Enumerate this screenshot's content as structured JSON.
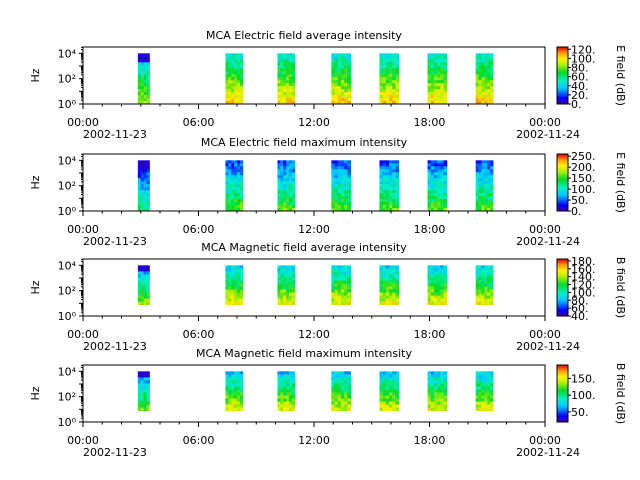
{
  "colors": {
    "background": "#ffffff",
    "empty_plot": "#ffffff",
    "axis": "#000000"
  },
  "chart_data": [
    {
      "type": "heatmap",
      "title": "MCA  Electric field average intensity",
      "ylabel": "Hz",
      "colorbar_label": "E field (dB)",
      "colorbar_ticks": [
        "0.",
        "20.",
        "40.",
        "60.",
        "80.",
        "100.",
        "120."
      ],
      "colorbar_range": [
        0,
        125
      ],
      "x_tick_labels": [
        "00:00",
        "06:00",
        "12:00",
        "18:00",
        "00:00"
      ],
      "x_date_labels": [
        "2002-11-23",
        "2002-11-24"
      ],
      "x_range_hours": [
        0,
        24
      ],
      "y_log_range": [
        0,
        4.5
      ],
      "y_tick_exponents": [
        0,
        2,
        4
      ],
      "data_blocks_hours": [
        [
          2.85,
          3.45
        ],
        [
          7.4,
          8.3
        ],
        [
          10.1,
          11
        ],
        [
          12.9,
          13.9
        ],
        [
          15.4,
          16.4
        ],
        [
          17.9,
          18.9
        ],
        [
          20.4,
          21.3
        ]
      ],
      "frequency_range_log": [
        0,
        4
      ],
      "typical_level_db": 72
    },
    {
      "type": "heatmap",
      "title": "MCA  Electric field maximum intensity",
      "ylabel": "Hz",
      "colorbar_label": "E field (dB)",
      "colorbar_ticks": [
        "0.",
        "50.",
        "100.",
        "150.",
        "200.",
        "250."
      ],
      "colorbar_range": [
        0,
        260
      ],
      "x_tick_labels": [
        "00:00",
        "06:00",
        "12:00",
        "18:00",
        "00:00"
      ],
      "x_date_labels": [
        "2002-11-23",
        "2002-11-24"
      ],
      "x_range_hours": [
        0,
        24
      ],
      "y_log_range": [
        0,
        4.5
      ],
      "y_tick_exponents": [
        0,
        2,
        4
      ],
      "data_blocks_hours": [
        [
          2.85,
          3.45
        ],
        [
          7.4,
          8.3
        ],
        [
          10.1,
          11
        ],
        [
          12.9,
          13.9
        ],
        [
          15.4,
          16.4
        ],
        [
          17.9,
          18.9
        ],
        [
          20.4,
          21.3
        ]
      ],
      "frequency_range_log": [
        0,
        4
      ],
      "typical_level_db": 95
    },
    {
      "type": "heatmap",
      "title": "MCA  Magnetic field average intensity",
      "ylabel": "Hz",
      "colorbar_label": "B field (dB)",
      "colorbar_ticks": [
        "40.",
        "60.",
        "80.",
        "100.",
        "120.",
        "140.",
        "160.",
        "180."
      ],
      "colorbar_range": [
        40,
        185
      ],
      "x_tick_labels": [
        "00:00",
        "06:00",
        "12:00",
        "18:00",
        "00:00"
      ],
      "x_date_labels": [
        "2002-11-23",
        "2002-11-24"
      ],
      "x_range_hours": [
        0,
        24
      ],
      "y_log_range": [
        0,
        4.5
      ],
      "y_tick_exponents": [
        0,
        2,
        4
      ],
      "data_blocks_hours": [
        [
          2.85,
          3.45
        ],
        [
          7.4,
          8.3
        ],
        [
          10.1,
          11
        ],
        [
          12.9,
          13.9
        ],
        [
          15.4,
          16.4
        ],
        [
          17.9,
          18.9
        ],
        [
          20.4,
          21.3
        ]
      ],
      "frequency_range_log": [
        0.9,
        4
      ],
      "typical_level_db": 115
    },
    {
      "type": "heatmap",
      "title": "MCA  Magnetic field maximum intensity",
      "ylabel": "Hz",
      "colorbar_label": "B field (dB)",
      "colorbar_ticks": [
        "50.",
        "100.",
        "150."
      ],
      "colorbar_range": [
        20,
        190
      ],
      "x_tick_labels": [
        "00:00",
        "06:00",
        "12:00",
        "18:00",
        "00:00"
      ],
      "x_date_labels": [
        "2002-11-23",
        "2002-11-24"
      ],
      "x_range_hours": [
        0,
        24
      ],
      "y_log_range": [
        0,
        4.5
      ],
      "y_tick_exponents": [
        0,
        2,
        4
      ],
      "data_blocks_hours": [
        [
          2.85,
          3.45
        ],
        [
          7.4,
          8.3
        ],
        [
          10.1,
          11
        ],
        [
          12.9,
          13.9
        ],
        [
          15.4,
          16.4
        ],
        [
          17.9,
          18.9
        ],
        [
          20.4,
          21.3
        ]
      ],
      "frequency_range_log": [
        0.9,
        4
      ],
      "typical_level_db": 105
    }
  ]
}
